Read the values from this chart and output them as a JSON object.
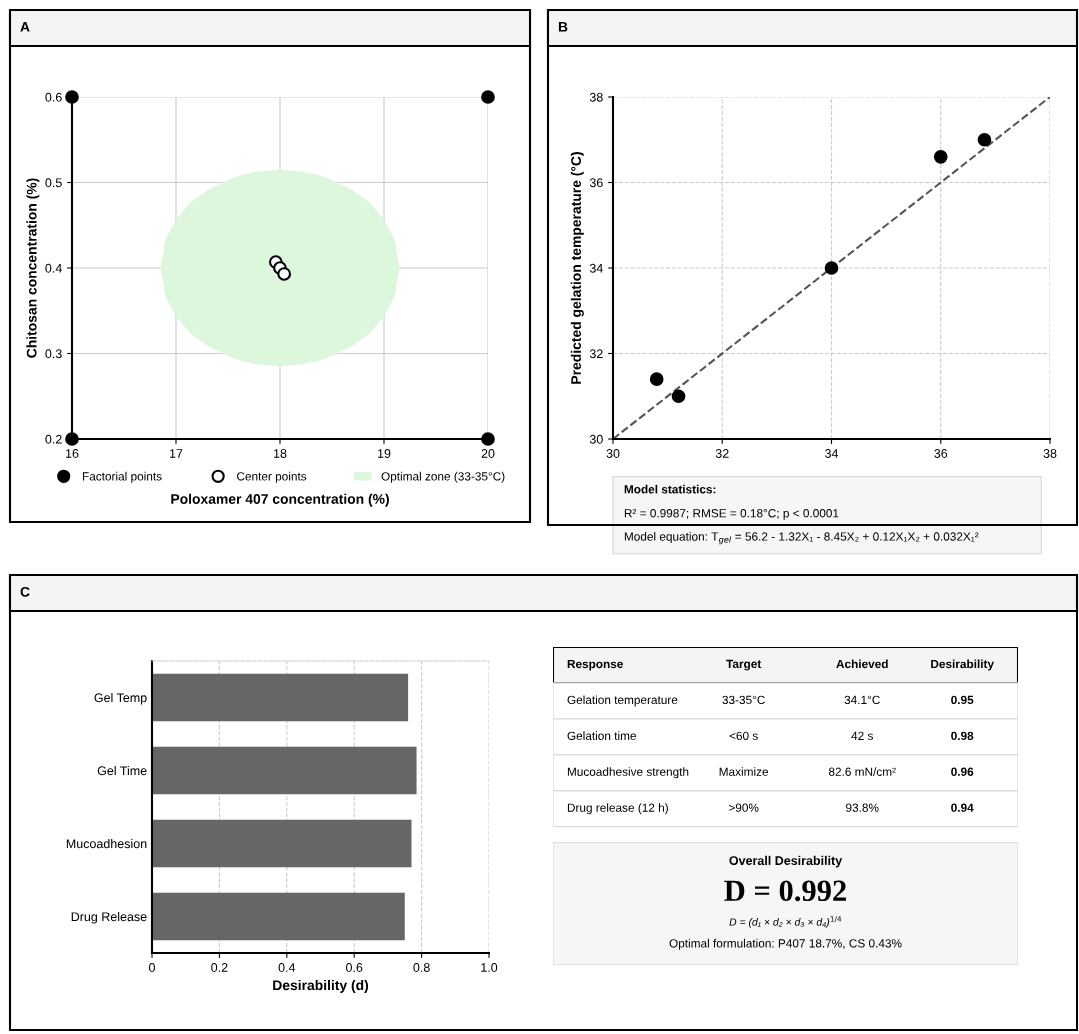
{
  "chart_data": [
    {
      "type": "scatter",
      "title": "A",
      "xlabel": "Poloxamer 407 concentration (%)",
      "ylabel": "Chitosan concentration (%)",
      "xlim": [
        16,
        20
      ],
      "xticks": [
        16,
        17,
        18,
        19,
        20
      ],
      "ylim": [
        0.2,
        0.6
      ],
      "yticks": [
        0.2,
        0.3,
        0.4,
        0.5,
        0.6
      ],
      "grid": true,
      "legend": "bottom",
      "series": [
        {
          "type": "scatter",
          "marker": "circle",
          "name": "Factorial points",
          "color": "#000000",
          "x": [
            16,
            16,
            20,
            20
          ],
          "values": [
            0.2,
            0.6,
            0.2,
            0.6
          ]
        },
        {
          "type": "scatter",
          "marker": "circle",
          "name": "Center points",
          "color": "#ffffff",
          "x": [
            17.96,
            18.0,
            18.04
          ],
          "values": [
            0.407,
            0.4,
            0.393
          ]
        },
        {
          "type": "area",
          "name": "Optimal zone (33-35°C)",
          "color": "#dcf7dc",
          "x": [
            16.85,
            16.9,
            17.0,
            17.15,
            17.3,
            17.45,
            17.6,
            17.8,
            18.0,
            18.2,
            18.4,
            18.55,
            18.7,
            18.85,
            19.0,
            19.1,
            19.15,
            19.1,
            19.0,
            18.85,
            18.7,
            18.55,
            18.4,
            18.2,
            18.0,
            17.8,
            17.6,
            17.45,
            17.3,
            17.15,
            17.0,
            16.9
          ],
          "values": [
            0.4,
            0.434,
            0.457,
            0.478,
            0.491,
            0.5,
            0.508,
            0.513,
            0.515,
            0.513,
            0.508,
            0.5,
            0.491,
            0.478,
            0.457,
            0.434,
            0.4,
            0.366,
            0.343,
            0.322,
            0.309,
            0.3,
            0.292,
            0.287,
            0.285,
            0.287,
            0.292,
            0.3,
            0.309,
            0.322,
            0.343,
            0.366
          ]
        }
      ]
    },
    {
      "type": "scatter",
      "title": "B",
      "ylabel": "Predicted gelation temperature (°C)",
      "xlim": [
        30,
        38
      ],
      "xticks": [
        30,
        32,
        34,
        36,
        38
      ],
      "ylim": [
        30,
        38
      ],
      "yticks": [
        30,
        32,
        34,
        36,
        38
      ],
      "grid": true,
      "annotations": [
        "Model statistics:",
        "R² = 0.9987; RMSE = 0.18°C; p < 0.0001",
        "Model equation: T$_{gel}$ = 56.2 - 1.32X₁ - 8.45X₂ + 0.12X₁X₂ + 0.032X₁²"
      ],
      "series": [
        {
          "type": "line",
          "color": "#555555",
          "line_style": "dashed",
          "marker": "none",
          "x": [
            30,
            38
          ],
          "values": [
            30,
            38
          ]
        },
        {
          "type": "scatter",
          "marker": "circle",
          "color": "#000000",
          "x": [
            30.8,
            31.2,
            34.0,
            36.0,
            36.8
          ],
          "values": [
            31.4,
            31.0,
            34.0,
            36.6,
            37.0
          ]
        }
      ]
    },
    {
      "type": "bar",
      "orientation": "horizontal",
      "title": "C",
      "xlabel": "Desirability (d)",
      "categories": [
        "Gel Temp",
        "Gel Time",
        "Mucoadhesion",
        "Drug Release"
      ],
      "values": [
        0.76,
        0.785,
        0.77,
        0.75
      ],
      "color": "#666666",
      "xlim": [
        0,
        1
      ],
      "xticks": [
        0,
        0.2,
        0.4,
        0.6,
        0.8,
        {
          "value": 1,
          "label": "1.0"
        }
      ],
      "grid": "x"
    },
    {
      "type": "other",
      "categories": [
        "Response",
        "Target",
        "Achieved",
        "Desirability"
      ],
      "cell_labels": [
        [
          "Gelation temperature",
          "33-35°C",
          "34.1°C",
          "0.95"
        ],
        [
          "Gelation time",
          "<60 s",
          "42 s",
          "0.98"
        ],
        [
          "Mucoadhesive strength",
          "Maximize",
          "82.6 mN/cm²",
          "0.96"
        ],
        [
          "Drug release (12 h)",
          ">90%",
          "93.8%",
          "0.94"
        ]
      ],
      "title": "Overall Desirability",
      "annotations": [
        "D = 0.992",
        "D = (d₁ × d₂ × d₃ × d₄)$^{1/4}$",
        "Optimal formulation: P407 18.7%, CS 0.43%"
      ]
    }
  ]
}
